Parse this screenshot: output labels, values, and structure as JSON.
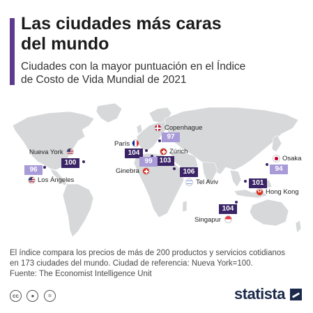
{
  "header": {
    "title": "Las ciudades más caras\ndel mundo",
    "subtitle": "Ciudades con la mayor puntuación en el Índice\nde Costo de Vida Mundial de 2021"
  },
  "colors": {
    "accent": "#5c3b8f",
    "badge_light": "#a99bd8",
    "badge_dark": "#3a2466",
    "land": "#d6d8da"
  },
  "cities": [
    {
      "id": "copenhague",
      "name": "Copenhague",
      "score": "97",
      "flag": "dk-flag-icon"
    },
    {
      "id": "paris",
      "name": "París",
      "score": "104",
      "flag": "fr-flag-icon"
    },
    {
      "id": "zurich",
      "name": "Zúrich",
      "score": "103",
      "flag": "ch-flag-icon"
    },
    {
      "id": "ginebra",
      "name": "Ginebra",
      "score": "99",
      "flag": "ch-flag-icon"
    },
    {
      "id": "nueva-york",
      "name": "Nueva York",
      "score": "100",
      "flag": "us-flag-icon"
    },
    {
      "id": "los-angeles",
      "name": "Los Ángeles",
      "score": "96",
      "flag": "us-flag-icon"
    },
    {
      "id": "tel-aviv",
      "name": "Tel Aviv",
      "score": "106",
      "flag": "il-flag-icon"
    },
    {
      "id": "osaka",
      "name": "Osaka",
      "score": "94",
      "flag": "jp-flag-icon"
    },
    {
      "id": "hong-kong",
      "name": "Hong Kong",
      "score": "101",
      "flag": "hk-flag-icon"
    },
    {
      "id": "singapur",
      "name": "Singapur",
      "score": "104",
      "flag": "sg-flag-icon"
    }
  ],
  "footnote": {
    "line1": "El índice compara los precios de más de 200 productos y servicios cotidianos",
    "line2": "en 173 ciudades del mundo. Ciudad de referencia: Nueva York=100.",
    "source": "Fuente: The Economist Intelligence Unit"
  },
  "footer": {
    "license_icons": [
      "cc-icon",
      "by-icon",
      "nd-icon"
    ],
    "logo": "statista"
  }
}
